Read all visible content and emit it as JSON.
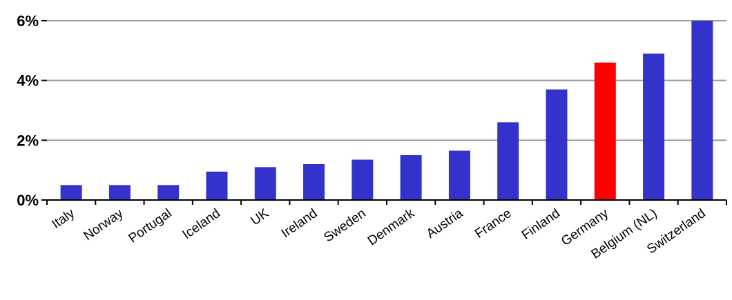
{
  "chart_data": {
    "type": "bar",
    "categories": [
      "Italy",
      "Norway",
      "Portugal",
      "Iceland",
      "UK",
      "Ireland",
      "Sweden",
      "Denmark",
      "Austria",
      "France",
      "Finland",
      "Germany",
      "Belgium (NL)",
      "Switzerland"
    ],
    "values": [
      0.5,
      0.5,
      0.5,
      0.95,
      1.1,
      1.2,
      1.35,
      1.5,
      1.65,
      2.6,
      3.7,
      4.6,
      4.9,
      6.0
    ],
    "bar_colors": [
      "#3333cc",
      "#3333cc",
      "#3333cc",
      "#3333cc",
      "#3333cc",
      "#3333cc",
      "#3333cc",
      "#3333cc",
      "#3333cc",
      "#3333cc",
      "#3333cc",
      "#ff0000",
      "#3333cc",
      "#3333cc"
    ],
    "yticks": [
      "0%",
      "2%",
      "4%",
      "6%"
    ],
    "ytick_values": [
      0,
      2,
      4,
      6
    ],
    "ylim": [
      0,
      6
    ],
    "title": "",
    "xlabel": "",
    "ylabel": "",
    "grid": true,
    "legend": "none"
  }
}
